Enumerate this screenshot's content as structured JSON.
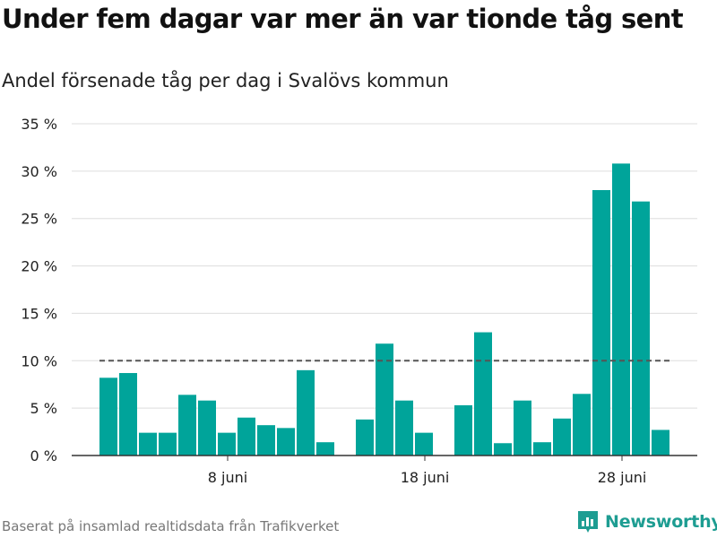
{
  "title": "Under fem dagar var mer än var tionde tåg sent",
  "subtitle": "Andel försenade tåg per dag i Svalövs kommun",
  "footer": "Baserat på insamlad realtidsdata från Trafikverket",
  "brand": {
    "name": "Newsworthy",
    "icon": "bar-chart-logo-icon"
  },
  "colors": {
    "bar": "#00a49a",
    "reference_line": "#555555",
    "grid": "#dddddd",
    "brand": "#1e9d92"
  },
  "chart_data": {
    "type": "bar",
    "title": "Under fem dagar var mer än var tionde tåg sent",
    "subtitle": "Andel försenade tåg per dag i Svalövs kommun",
    "xlabel": "",
    "ylabel": "",
    "ylim": [
      0,
      35
    ],
    "yticks": [
      {
        "value": 0,
        "label": "0 %"
      },
      {
        "value": 5,
        "label": "5 %"
      },
      {
        "value": 10,
        "label": "10 %"
      },
      {
        "value": 15,
        "label": "15 %"
      },
      {
        "value": 20,
        "label": "20 %"
      },
      {
        "value": 25,
        "label": "25 %"
      },
      {
        "value": 30,
        "label": "30 %"
      },
      {
        "value": 35,
        "label": "35 %"
      }
    ],
    "xticks": [
      {
        "day": 8,
        "label": "8 juni"
      },
      {
        "day": 18,
        "label": "18 juni"
      },
      {
        "day": 28,
        "label": "28 juni"
      }
    ],
    "grid": true,
    "x": [
      2,
      3,
      4,
      5,
      6,
      7,
      8,
      9,
      10,
      11,
      12,
      13,
      14,
      15,
      16,
      17,
      18,
      19,
      20,
      21,
      22,
      23,
      24,
      25,
      26,
      27,
      28,
      29,
      30
    ],
    "values": [
      8.2,
      8.7,
      2.4,
      2.4,
      6.4,
      5.8,
      2.4,
      4.0,
      3.2,
      2.9,
      9.0,
      1.4,
      null,
      3.8,
      11.8,
      5.8,
      2.4,
      null,
      5.3,
      13.0,
      1.3,
      5.8,
      1.4,
      3.9,
      6.5,
      28.0,
      30.8,
      26.8,
      2.7
    ],
    "reference_line": {
      "y": 10,
      "style": "dashed",
      "x_start": 2,
      "x_end": 30
    }
  }
}
